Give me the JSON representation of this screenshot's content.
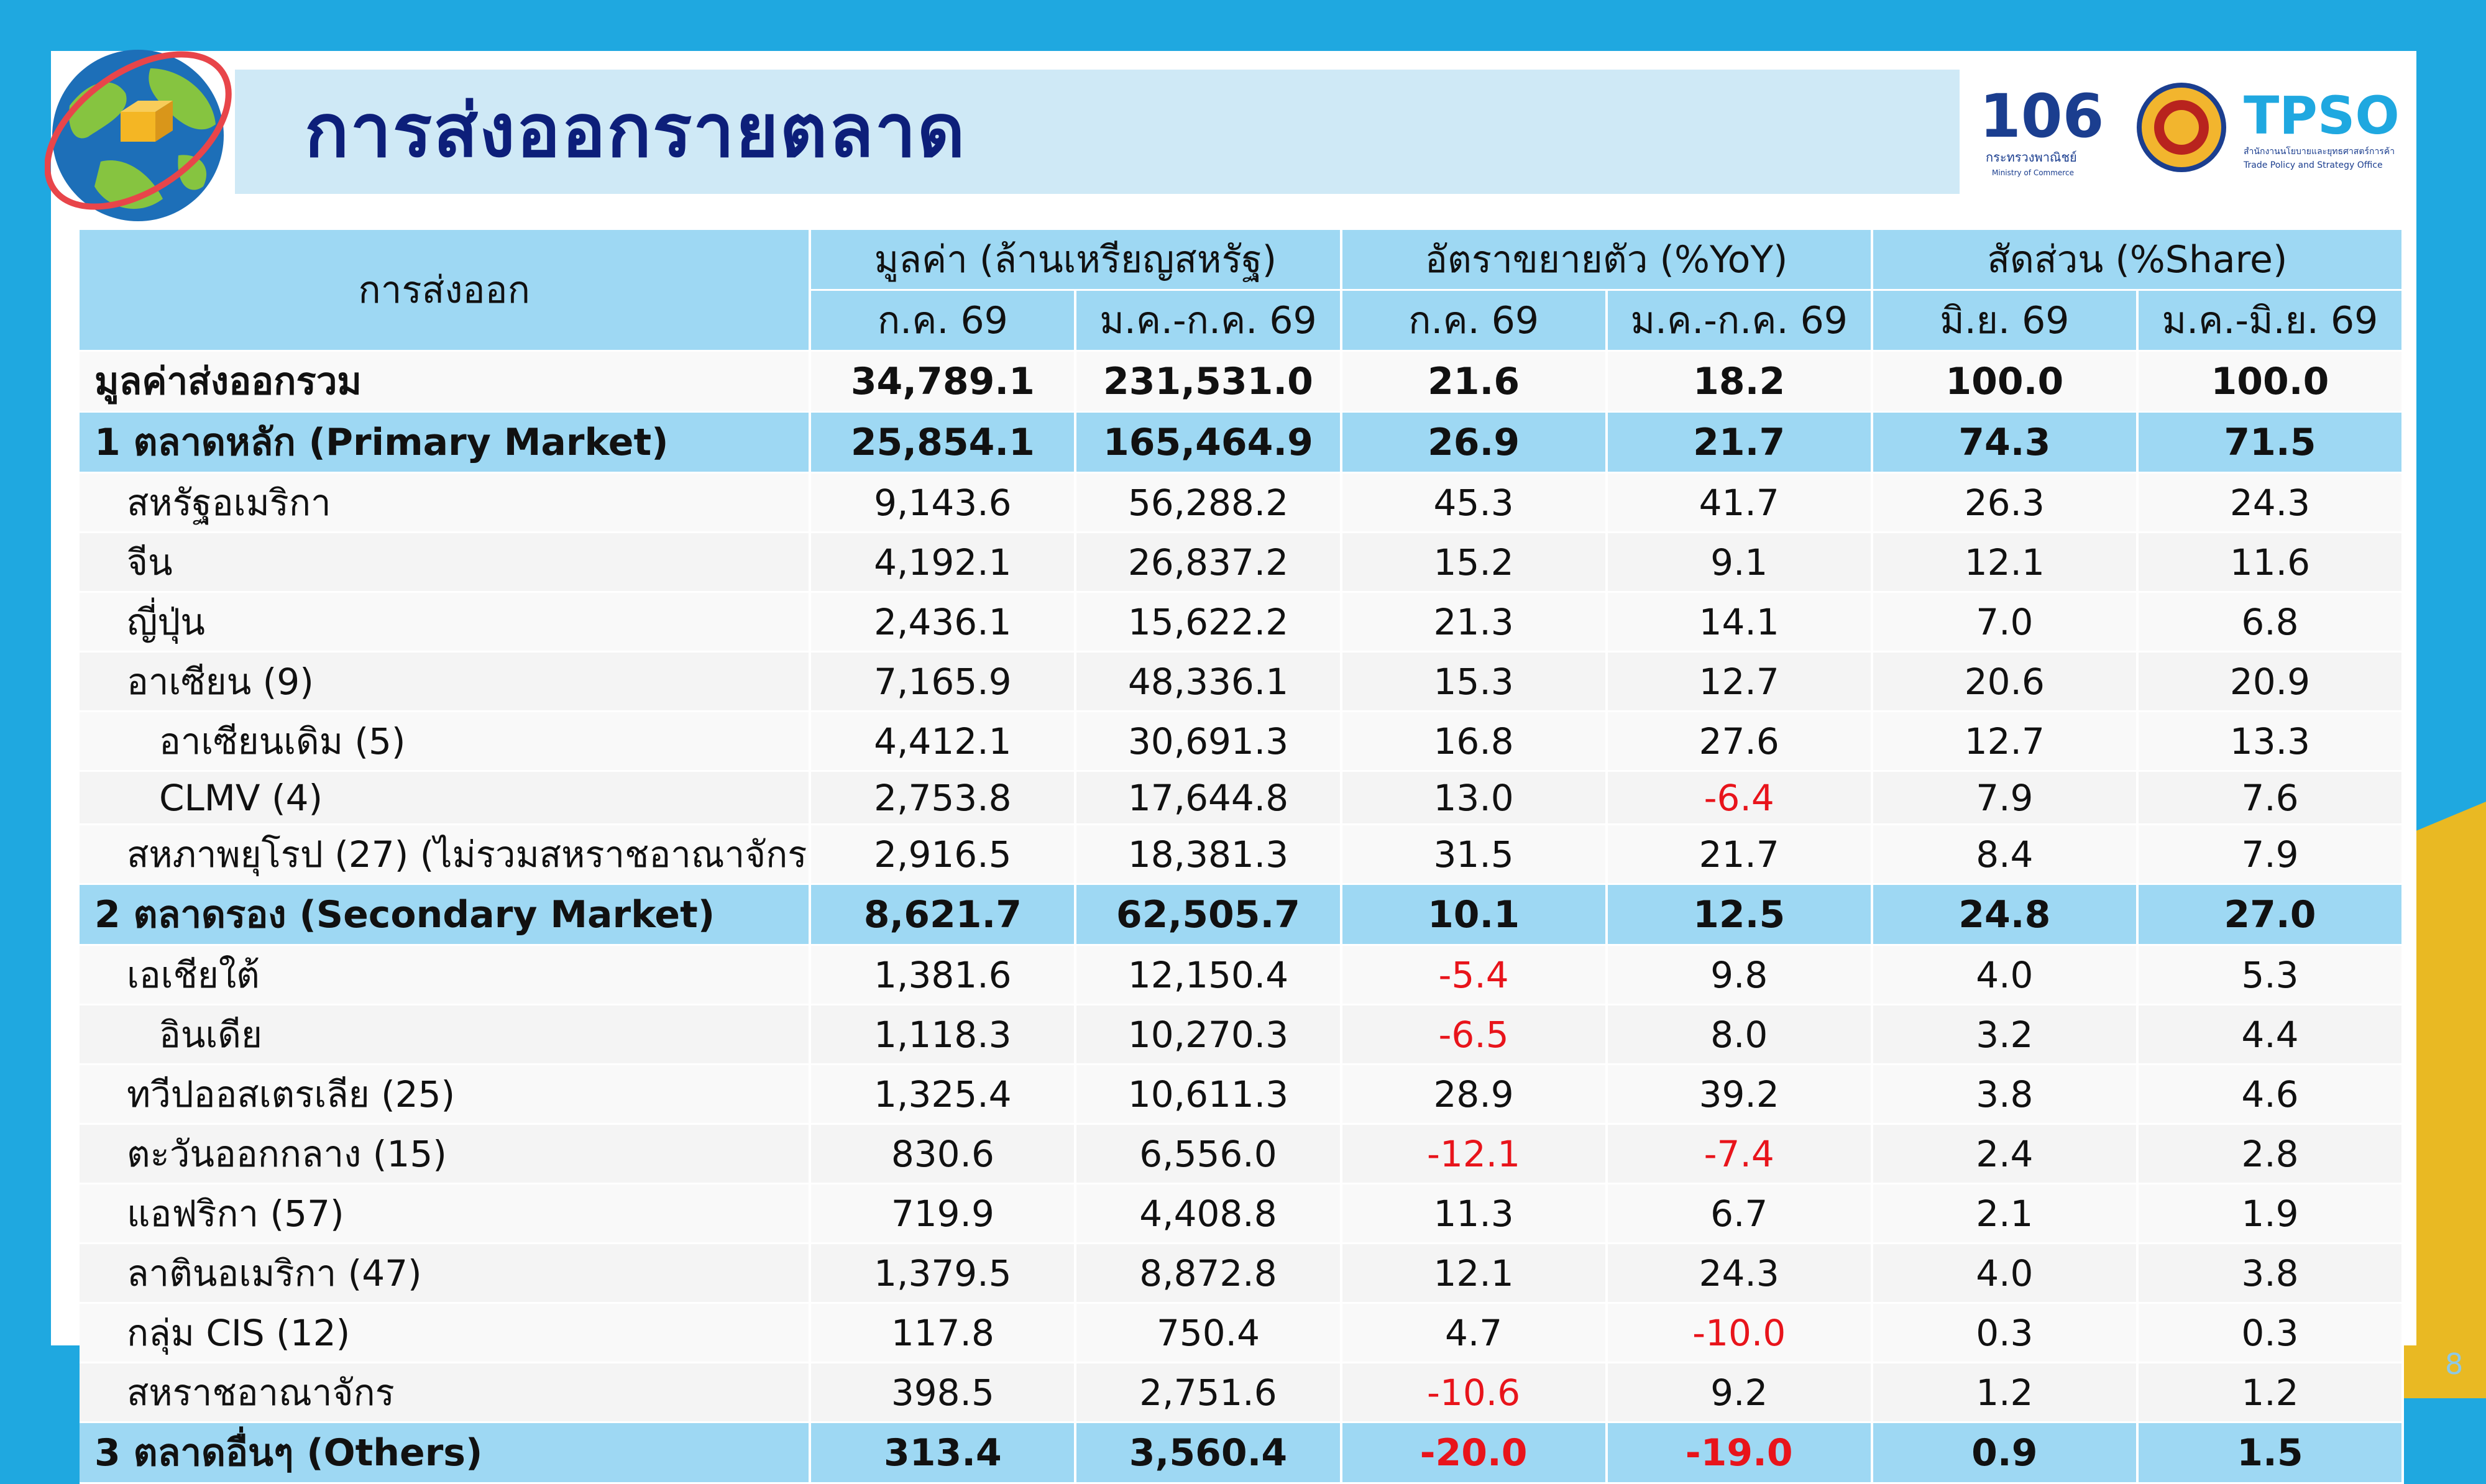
{
  "title": "การส่งออกรายตลาด",
  "page_number": "8",
  "logos": {
    "ministry_number": "106",
    "ministry_th": "กระทรวงพาณิชย์",
    "ministry_en": "Ministry of Commerce",
    "tpso_name": "TPSO",
    "tpso_th": "สำนักงานนโยบายและยุทธศาสตร์การค้า",
    "tpso_en": "Trade Policy and Strategy Office"
  },
  "colors": {
    "header_bg": "#9ed8f3",
    "title_color": "#0d1f7a",
    "negative": "#e8141b",
    "frame_blue": "#1fa8e0",
    "frame_yellow": "#e9b923"
  },
  "table": {
    "row_header": "การส่งออก",
    "group_headers": [
      "มูลค่า (ล้านเหรียญสหรัฐ)",
      "อัตราขยายตัว (%YoY)",
      "สัดส่วน (%Share)"
    ],
    "sub_headers": [
      "ก.ค. 69",
      "ม.ค.-ก.ค. 69",
      "ก.ค. 69",
      "ม.ค.-ก.ค. 69",
      "มิ.ย. 69",
      "ม.ค.-มิ.ย. 69"
    ],
    "rows": [
      {
        "label": "มูลค่าส่งออกรวม",
        "values": [
          "34,789.1",
          "231,531.0",
          "21.6",
          "18.2",
          "100.0",
          "100.0"
        ]
      },
      {
        "label": "1 ตลาดหลัก (Primary Market)",
        "values": [
          "25,854.1",
          "165,464.9",
          "26.9",
          "21.7",
          "74.3",
          "71.5"
        ]
      },
      {
        "label": "สหรัฐอเมริกา",
        "values": [
          "9,143.6",
          "56,288.2",
          "45.3",
          "41.7",
          "26.3",
          "24.3"
        ]
      },
      {
        "label": "จีน",
        "values": [
          "4,192.1",
          "26,837.2",
          "15.2",
          "9.1",
          "12.1",
          "11.6"
        ]
      },
      {
        "label": "ญี่ปุ่น",
        "values": [
          "2,436.1",
          "15,622.2",
          "21.3",
          "14.1",
          "7.0",
          "6.8"
        ]
      },
      {
        "label": "อาเซียน (9)",
        "values": [
          "7,165.9",
          "48,336.1",
          "15.3",
          "12.7",
          "20.6",
          "20.9"
        ]
      },
      {
        "label": "อาเซียนเดิม (5)",
        "values": [
          "4,412.1",
          "30,691.3",
          "16.8",
          "27.6",
          "12.7",
          "13.3"
        ]
      },
      {
        "label": "CLMV (4)",
        "values": [
          "2,753.8",
          "17,644.8",
          "13.0",
          "-6.4",
          "7.9",
          "7.6"
        ]
      },
      {
        "label": "สหภาพยุโรป (27) (ไม่รวมสหราชอาณาจักร)",
        "values": [
          "2,916.5",
          "18,381.3",
          "31.5",
          "21.7",
          "8.4",
          "7.9"
        ]
      },
      {
        "label": "2 ตลาดรอง (Secondary Market)",
        "values": [
          "8,621.7",
          "62,505.7",
          "10.1",
          "12.5",
          "24.8",
          "27.0"
        ]
      },
      {
        "label": "เอเชียใต้",
        "values": [
          "1,381.6",
          "12,150.4",
          "-5.4",
          "9.8",
          "4.0",
          "5.3"
        ]
      },
      {
        "label": "อินเดีย",
        "values": [
          "1,118.3",
          "10,270.3",
          "-6.5",
          "8.0",
          "3.2",
          "4.4"
        ]
      },
      {
        "label": "ทวีปออสเตรเลีย (25)",
        "values": [
          "1,325.4",
          "10,611.3",
          "28.9",
          "39.2",
          "3.8",
          "4.6"
        ]
      },
      {
        "label": "ตะวันออกกลาง (15)",
        "values": [
          "830.6",
          "6,556.0",
          "-12.1",
          "-7.4",
          "2.4",
          "2.8"
        ]
      },
      {
        "label": "แอฟริกา (57)",
        "values": [
          "719.9",
          "4,408.8",
          "11.3",
          "6.7",
          "2.1",
          "1.9"
        ]
      },
      {
        "label": "ลาตินอเมริกา (47)",
        "values": [
          "1,379.5",
          "8,872.8",
          "12.1",
          "24.3",
          "4.0",
          "3.8"
        ]
      },
      {
        "label": "กลุ่ม CIS (12)",
        "values": [
          "117.8",
          "750.4",
          "4.7",
          "-10.0",
          "0.3",
          "0.3"
        ]
      },
      {
        "label": "สหราชอาณาจักร",
        "values": [
          "398.5",
          "2,751.6",
          "-10.6",
          "9.2",
          "1.2",
          "1.2"
        ]
      },
      {
        "label": "3 ตลาดอื่นๆ (Others)",
        "values": [
          "313.4",
          "3,560.4",
          "-20.0",
          "-19.0",
          "0.9",
          "1.5"
        ]
      }
    ]
  }
}
